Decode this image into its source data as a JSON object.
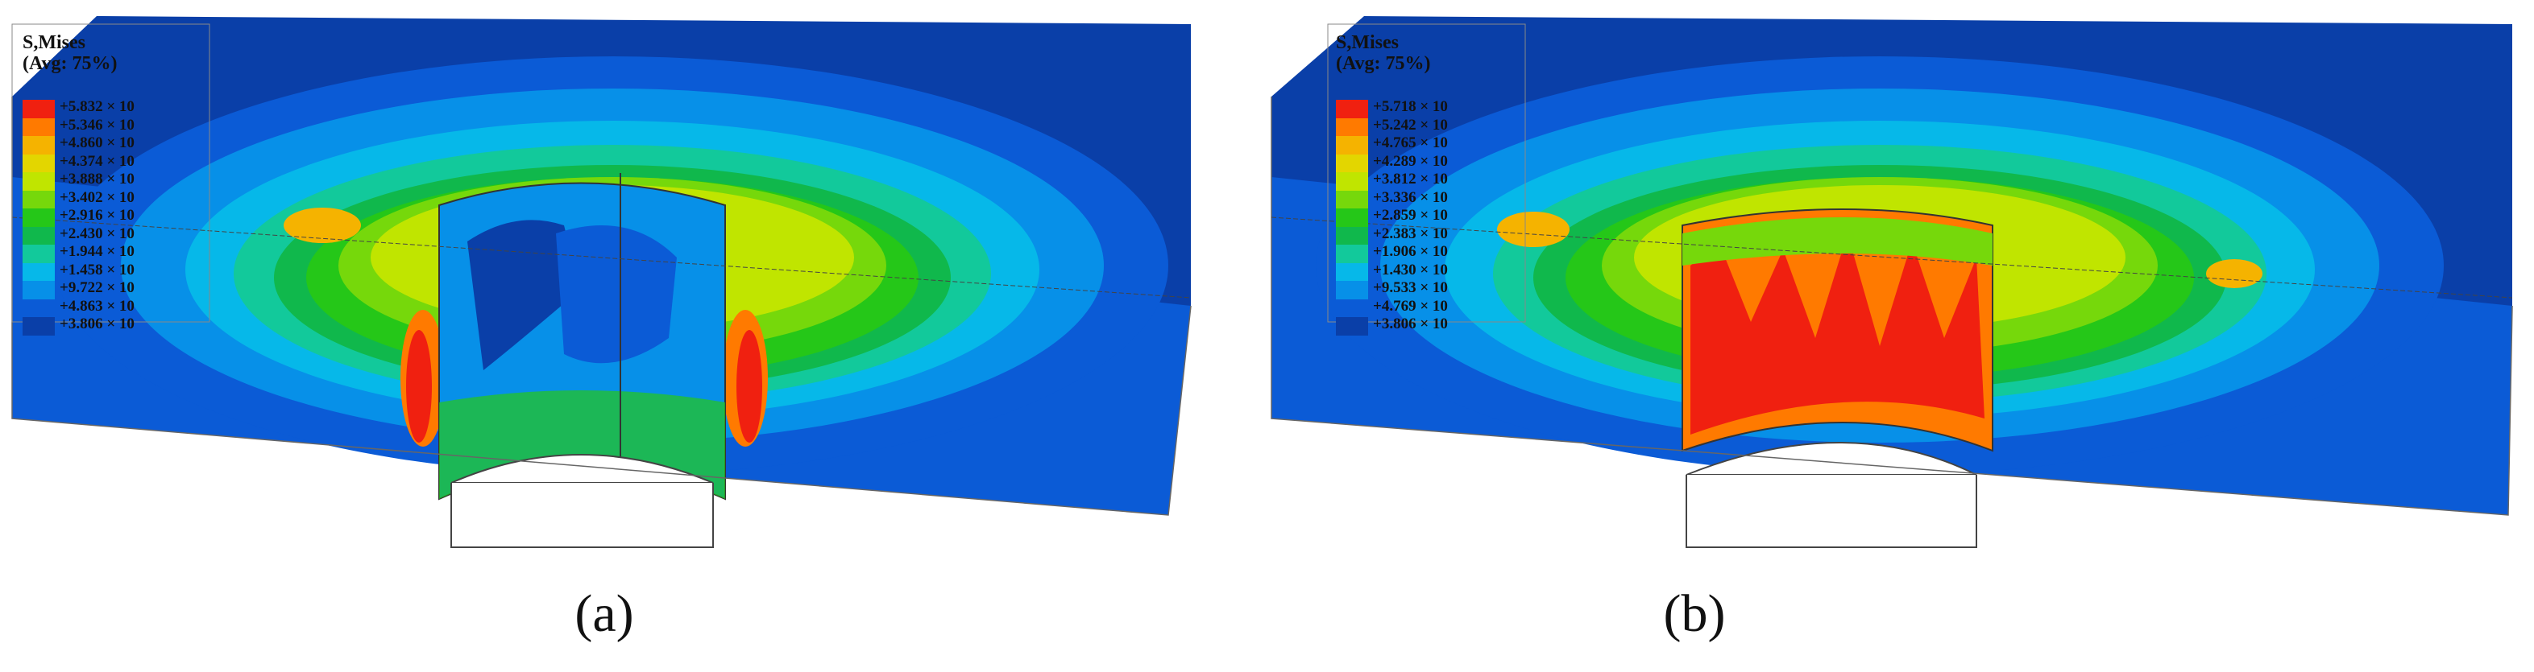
{
  "colors": {
    "contour": [
      "#0a3fa8",
      "#0b5bd6",
      "#0790e8",
      "#06b8e9",
      "#12c99b",
      "#10b84c",
      "#25c718",
      "#76d80b",
      "#c0e500",
      "#e3d600",
      "#f5b300",
      "#ff7a00",
      "#f02010"
    ]
  },
  "panels": [
    {
      "label": "(a)",
      "legend": {
        "title_line1": "S,Mises",
        "title_line2": "(Avg: 75%)",
        "values": [
          "+5.832 × 10",
          "+5.346 × 10",
          "+4.860 × 10",
          "+4.374 × 10",
          "+3.888 × 10",
          "+3.402 × 10",
          "+2.916 × 10",
          "+2.430 × 10",
          "+1.944 × 10",
          "+1.458 × 10",
          "+9.722 × 10",
          "+4.863 × 10",
          "+3.806 × 10"
        ]
      }
    },
    {
      "label": "(b)",
      "legend": {
        "title_line1": "S,Mises",
        "title_line2": "(Avg: 75%)",
        "values": [
          "+5.718 × 10",
          "+5.242 × 10",
          "+4.765 × 10",
          "+4.289 × 10",
          "+3.812 × 10",
          "+3.336 × 10",
          "+2.859 × 10",
          "+2.383 × 10",
          "+1.906 × 10",
          "+1.430 × 10",
          "+9.533 × 10",
          "+4.769 × 10",
          "+3.806 × 10"
        ]
      }
    }
  ]
}
